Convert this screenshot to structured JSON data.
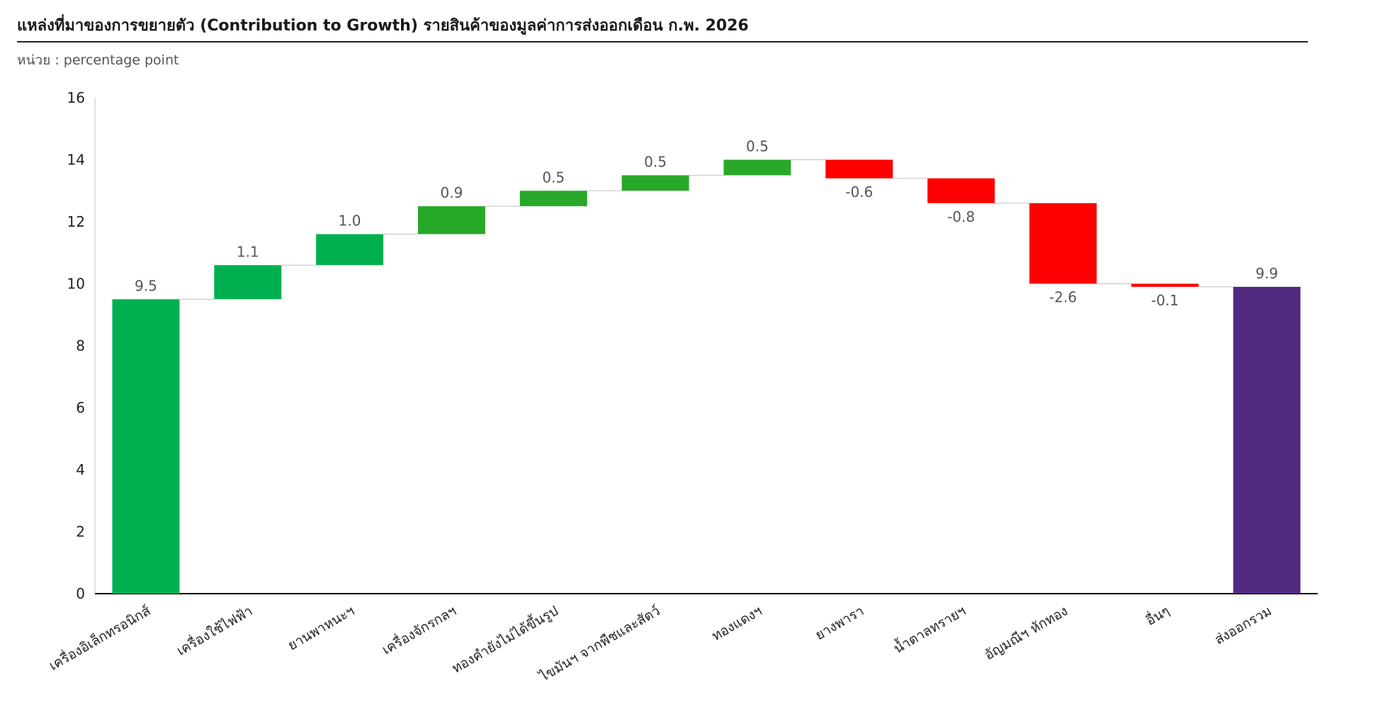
{
  "header": {
    "title": "แหล่งที่มาของการขยายตัว (Contribution to Growth) รายสินค้าของมูลค่าการส่งออกเดือน ก.พ. 2026",
    "subtitle": "หน่วย : percentage point"
  },
  "chart_data": {
    "type": "bar",
    "subtype": "waterfall",
    "title": "แหล่งที่มาของการขยายตัว (Contribution to Growth) รายสินค้าของมูลค่าการส่งออกเดือน ก.พ. 2026",
    "ylabel": "",
    "xlabel": "",
    "ylim": [
      0,
      16
    ],
    "yticks": [
      0,
      2,
      4,
      6,
      8,
      10,
      12,
      14,
      16
    ],
    "grid": false,
    "categories": [
      "เครื่องอิเล็กทรอนิกส์",
      "เครื่องใช้ไฟฟ้า",
      "ยานพาหนะฯ",
      "เครื่องจักรกลฯ",
      "ทองคำยังไม่ได้ขึ้นรูป",
      "ไขมันฯ จากพืชและสัตว์",
      "ทองแดงฯ",
      "ยางพารา",
      "น้ำตาลทรายฯ",
      "อัญมณีฯ หักทอง",
      "อื่นๆ",
      "ส่งออกรวม"
    ],
    "values": [
      9.5,
      1.1,
      1.0,
      0.9,
      0.5,
      0.5,
      0.5,
      -0.6,
      -0.8,
      -2.6,
      -0.1,
      9.9
    ],
    "value_labels": [
      "9.5",
      "1.1",
      "1.0",
      "0.9",
      "0.5",
      "0.5",
      "0.5",
      "-0.6",
      "-0.8",
      "-2.6",
      "-0.1",
      "9.9"
    ],
    "bar_kinds": [
      "start",
      "up",
      "up",
      "up",
      "up",
      "up",
      "up",
      "down",
      "down",
      "down",
      "down",
      "total"
    ],
    "bar_colors": [
      "#00b050",
      "#00b050",
      "#00b050",
      "#28a828",
      "#28a828",
      "#28a828",
      "#28a828",
      "#ff0000",
      "#ff0000",
      "#ff0000",
      "#ff0000",
      "#4f2a7f"
    ]
  }
}
